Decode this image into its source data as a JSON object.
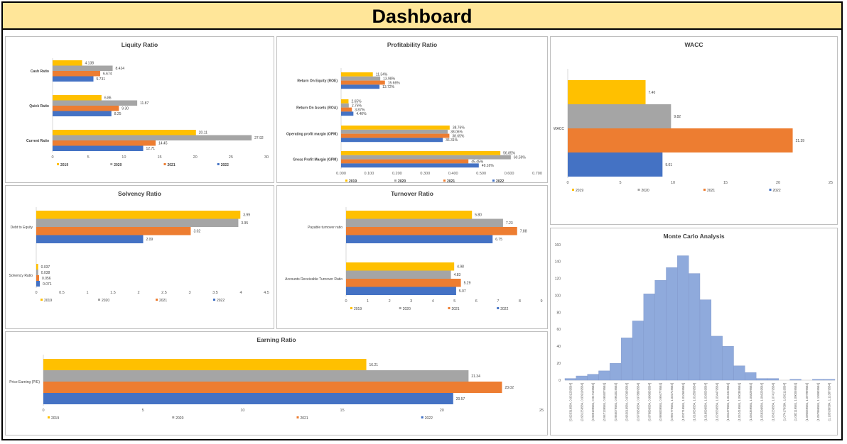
{
  "dashboard": {
    "title": "Dashboard"
  },
  "colors": {
    "2019": "#ffc000",
    "2020": "#a5a5a5",
    "2021": "#ed7d31",
    "2022": "#4472c4",
    "hist": "#8faadc",
    "grid": "#d9d9d9"
  },
  "legend_years": [
    "2019",
    "2020",
    "2021",
    "2022"
  ],
  "chart_data": [
    {
      "id": "liquidity",
      "type": "bar",
      "orientation": "horizontal",
      "title": "Liquity Ratio",
      "categories": [
        "Cash Ratio",
        "Quick Ratio",
        "Current Ratio"
      ],
      "series": [
        {
          "name": "2019",
          "values": [
            4.138,
            6.86,
            20.11
          ],
          "labels": [
            "4.138",
            "6.86",
            "20.11"
          ]
        },
        {
          "name": "2020",
          "values": [
            8.424,
            11.87,
            27.92
          ],
          "labels": [
            "8.424",
            "11.87",
            "27.92"
          ]
        },
        {
          "name": "2021",
          "values": [
            6.674,
            9.3,
            14.45
          ],
          "labels": [
            "6.674",
            "9.30",
            "14.45"
          ]
        },
        {
          "name": "2022",
          "values": [
            5.731,
            8.25,
            12.71
          ],
          "labels": [
            "5.731",
            "8.25",
            "12.71"
          ]
        }
      ],
      "xlim": [
        0,
        30
      ],
      "ticks": [
        "0",
        "5",
        "10",
        "15",
        "20",
        "25",
        "30"
      ],
      "legend": "bottom"
    },
    {
      "id": "profitability",
      "type": "bar",
      "orientation": "horizontal",
      "title": "Profitability Ratio",
      "categories": [
        "Return On Equity (ROE)",
        "Return On Assets (ROA)",
        "Operating profit margin (OPM)",
        "Gross Profit Margin (GPM)"
      ],
      "series": [
        {
          "name": "2019",
          "values": [
            0.1134,
            0.0265,
            0.3876,
            0.5685
          ],
          "labels": [
            "11.34%",
            "2.65%",
            "38.76%",
            "56.85%"
          ]
        },
        {
          "name": "2020",
          "values": [
            0.1398,
            0.0275,
            0.3806,
            0.6059
          ],
          "labels": [
            "13.98%",
            "2.75%",
            "38.06%",
            "60.59%"
          ]
        },
        {
          "name": "2021",
          "values": [
            0.1566,
            0.0387,
            0.3865,
            0.4545
          ],
          "labels": [
            "15.66%",
            "3.87%",
            "38.65%",
            "45.45%"
          ]
        },
        {
          "name": "2022",
          "values": [
            0.1372,
            0.044,
            0.3631,
            0.4916
          ],
          "labels": [
            "13.72%",
            "4.40%",
            "36.31%",
            "49.16%"
          ]
        }
      ],
      "xlim": [
        0,
        0.7
      ],
      "ticks": [
        "0.000",
        "0.100",
        "0.200",
        "0.300",
        "0.400",
        "0.500",
        "0.600",
        "0.700"
      ],
      "legend": "bottom"
    },
    {
      "id": "wacc",
      "type": "bar",
      "orientation": "horizontal",
      "title": "WACC",
      "categories": [
        "WACC"
      ],
      "series": [
        {
          "name": "2019",
          "values": [
            7.4
          ],
          "labels": [
            "7.40"
          ]
        },
        {
          "name": "2020",
          "values": [
            9.82
          ],
          "labels": [
            "9.82"
          ]
        },
        {
          "name": "2021",
          "values": [
            21.39
          ],
          "labels": [
            "21.39"
          ]
        },
        {
          "name": "2022",
          "values": [
            9.01
          ],
          "labels": [
            "9.01"
          ]
        }
      ],
      "xlim": [
        0,
        25
      ],
      "ticks": [
        "0",
        "5",
        "10",
        "15",
        "20",
        "25"
      ],
      "legend": "bottom"
    },
    {
      "id": "solvency",
      "type": "bar",
      "orientation": "horizontal",
      "title": "Solvency Ratio",
      "categories": [
        "Debt to Equity",
        "Solvency Ratio"
      ],
      "series": [
        {
          "name": "2019",
          "values": [
            3.99,
            0.037
          ],
          "labels": [
            "3.99",
            "0.037"
          ]
        },
        {
          "name": "2020",
          "values": [
            3.95,
            0.038
          ],
          "labels": [
            "3.95",
            "0.038"
          ]
        },
        {
          "name": "2021",
          "values": [
            3.02,
            0.056
          ],
          "labels": [
            "3.02",
            "0.056"
          ]
        },
        {
          "name": "2022",
          "values": [
            2.09,
            0.071
          ],
          "labels": [
            "2.09",
            "0.071"
          ]
        }
      ],
      "xlim": [
        0,
        4.5
      ],
      "ticks": [
        "0",
        "0.5",
        "1",
        "1.5",
        "2",
        "2.5",
        "3",
        "3.5",
        "4",
        "4.5"
      ],
      "legend": "bottom"
    },
    {
      "id": "turnover",
      "type": "bar",
      "orientation": "horizontal",
      "title": "Turnover Ratio",
      "categories": [
        "Payable turnover ratio",
        "Accounts Receivable Turnover Ratio"
      ],
      "series": [
        {
          "name": "2019",
          "values": [
            5.8,
            4.98
          ],
          "labels": [
            "5.80",
            "4.98"
          ]
        },
        {
          "name": "2020",
          "values": [
            7.23,
            4.83
          ],
          "labels": [
            "7.23",
            "4.83"
          ]
        },
        {
          "name": "2021",
          "values": [
            7.88,
            5.29
          ],
          "labels": [
            "7.88",
            "5.29"
          ]
        },
        {
          "name": "2022",
          "values": [
            6.75,
            5.07
          ],
          "labels": [
            "6.75",
            "5.07"
          ]
        }
      ],
      "xlim": [
        0,
        9
      ],
      "ticks": [
        "0",
        "1",
        "2",
        "3",
        "4",
        "5",
        "6",
        "7",
        "8",
        "9"
      ],
      "legend": "bottom"
    },
    {
      "id": "earning",
      "type": "bar",
      "orientation": "horizontal",
      "title": "Earning Ratio",
      "categories": [
        "Price Earning (P/E)"
      ],
      "series": [
        {
          "name": "2019",
          "values": [
            16.21
          ],
          "labels": [
            "16.21"
          ]
        },
        {
          "name": "2020",
          "values": [
            21.34
          ],
          "labels": [
            "21.34"
          ]
        },
        {
          "name": "2021",
          "values": [
            23.02
          ],
          "labels": [
            "23.02"
          ]
        },
        {
          "name": "2022",
          "values": [
            20.57
          ],
          "labels": [
            "20.57"
          ]
        }
      ],
      "xlim": [
        0,
        25
      ],
      "ticks": [
        "0",
        "5",
        "10",
        "15",
        "20",
        "25"
      ],
      "legend": "bottom"
    },
    {
      "id": "montecarlo",
      "type": "bar",
      "orientation": "vertical",
      "title": "Monte Carlo Analysis",
      "categories": [
        "[0.923319584, 0.931259584]",
        "(0.931259584, 0.939199584]",
        "(0.939199584, 0.947139584]",
        "(0.947139584, 0.955079584]",
        "(0.955079584, 0.963019584]",
        "(0.963019584, 0.970959584]",
        "(0.970959584, 0.978899584]",
        "(0.978899584, 0.986839584]",
        "(0.986839584, 0.994779584]",
        "(0.994779584, 1.002719584]",
        "(1.002719584, 1.010659584]",
        "(1.010659584, 1.018599584]",
        "(1.018599584, 1.026539584]",
        "(1.026539584, 1.034479584]",
        "(1.034479584, 1.042419584]",
        "(1.042419584, 1.050359584]",
        "(1.050359584, 1.058299584]",
        "(1.058299584, 1.066239584]",
        "(1.066239584, 1.074179584]",
        "(1.074179584, 1.082119584]",
        "(1.082119584, 1.090059584]",
        "(1.090059584, 1.097999584]",
        "(1.097999584, 1.105939584]",
        "(1.105939584, 1.113879584]"
      ],
      "values": [
        2,
        5,
        7,
        11,
        20,
        50,
        70,
        102,
        118,
        133,
        147,
        126,
        95,
        52,
        40,
        17,
        9,
        2,
        2,
        0,
        1,
        0,
        1,
        1
      ],
      "ylim": [
        0,
        160
      ],
      "ticks": [
        "0",
        "20",
        "40",
        "60",
        "80",
        "100",
        "120",
        "140",
        "160"
      ]
    }
  ]
}
